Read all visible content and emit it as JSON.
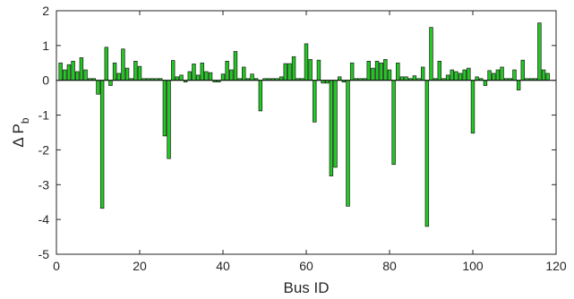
{
  "chart_data": {
    "type": "bar",
    "xlabel": "Bus ID",
    "ylabel": "Δ P",
    "ylabel_subscript": "b",
    "xlim": [
      0,
      120
    ],
    "ylim": [
      -5,
      2
    ],
    "xticks": [
      0,
      20,
      40,
      60,
      80,
      100,
      120
    ],
    "yticks": [
      -5,
      -4,
      -3,
      -2,
      -1,
      0,
      1,
      2
    ],
    "grid": false,
    "bar_color": "#22c922",
    "bar_edge_color": "#1a1a1a",
    "x": [
      1,
      2,
      3,
      4,
      5,
      6,
      7,
      8,
      9,
      10,
      11,
      12,
      13,
      14,
      15,
      16,
      17,
      18,
      19,
      20,
      21,
      22,
      23,
      24,
      25,
      26,
      27,
      28,
      29,
      30,
      31,
      32,
      33,
      34,
      35,
      36,
      37,
      38,
      39,
      40,
      41,
      42,
      43,
      44,
      45,
      46,
      47,
      48,
      49,
      50,
      51,
      52,
      53,
      54,
      55,
      56,
      57,
      58,
      59,
      60,
      61,
      62,
      63,
      64,
      65,
      66,
      67,
      68,
      69,
      70,
      71,
      72,
      73,
      74,
      75,
      76,
      77,
      78,
      79,
      80,
      81,
      82,
      83,
      84,
      85,
      86,
      87,
      88,
      89,
      90,
      91,
      92,
      93,
      94,
      95,
      96,
      97,
      98,
      99,
      100,
      101,
      102,
      103,
      104,
      105,
      106,
      107,
      108,
      109,
      110,
      111,
      112,
      113,
      114,
      115,
      116,
      117,
      118
    ],
    "values": [
      0.5,
      0.3,
      0.45,
      0.55,
      0.25,
      0.65,
      0.3,
      0.05,
      0.05,
      -0.4,
      -3.68,
      0.95,
      -0.15,
      0.5,
      0.2,
      0.9,
      0.35,
      0.05,
      0.55,
      0.4,
      0.05,
      0.05,
      0.05,
      0.05,
      0.05,
      -1.6,
      -2.25,
      0.57,
      0.1,
      0.15,
      -0.05,
      0.25,
      0.47,
      0.15,
      0.5,
      0.25,
      0.22,
      -0.05,
      -0.05,
      0.18,
      0.55,
      0.3,
      0.83,
      0.05,
      0.38,
      0.05,
      0.18,
      0.05,
      -0.88,
      0.05,
      0.05,
      0.05,
      0.05,
      0.1,
      0.48,
      0.48,
      0.68,
      0.05,
      0.05,
      1.05,
      0.6,
      -1.2,
      0.58,
      -0.08,
      -0.08,
      -2.75,
      -2.5,
      0.1,
      -0.05,
      -3.62,
      0.5,
      0.05,
      0.05,
      0.05,
      0.55,
      0.35,
      0.55,
      0.5,
      0.6,
      0.3,
      -2.42,
      0.5,
      0.1,
      0.1,
      0.05,
      0.13,
      0.05,
      0.38,
      -4.2,
      1.52,
      0.05,
      0.55,
      0.05,
      0.15,
      0.3,
      0.25,
      0.2,
      0.3,
      0.35,
      -1.52,
      0.1,
      0.05,
      -0.15,
      0.28,
      0.2,
      0.3,
      0.38,
      0.05,
      0.05,
      0.3,
      -0.28,
      0.58,
      0.05,
      0.05,
      0.05,
      1.65,
      0.3,
      0.2
    ]
  }
}
